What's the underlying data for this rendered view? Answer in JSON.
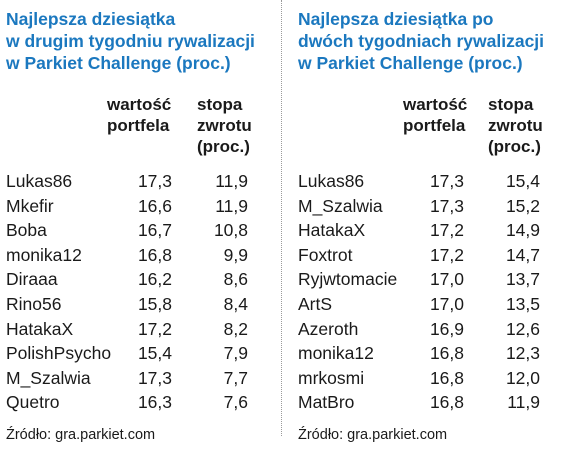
{
  "chart_data": [
    {
      "type": "table",
      "title_lines": [
        "Najlepsza dziesiątka",
        "w drugim tygodniu rywalizacji",
        "w Parkiet Challenge (proc.)"
      ],
      "columns": [
        "",
        "wartość portfela",
        "stopa zwrotu (proc.)"
      ],
      "header": {
        "value_lines": [
          "wartość",
          "portfela"
        ],
        "return_lines": [
          "stopa",
          "zwrotu",
          "(proc.)"
        ]
      },
      "rows": [
        {
          "name": "Lukas86",
          "value": "17,3",
          "ret": "11,9"
        },
        {
          "name": "Mkefir",
          "value": "16,6",
          "ret": "11,9"
        },
        {
          "name": "Boba",
          "value": "16,7",
          "ret": "10,8"
        },
        {
          "name": "monika12",
          "value": "16,8",
          "ret": "9,9"
        },
        {
          "name": "Diraaa",
          "value": "16,2",
          "ret": "8,6"
        },
        {
          "name": "Rino56",
          "value": "15,8",
          "ret": "8,4"
        },
        {
          "name": "HatakaX",
          "value": "17,2",
          "ret": "8,2"
        },
        {
          "name": "PolishPsycho",
          "value": "15,4",
          "ret": "7,9"
        },
        {
          "name": "M_Szalwia",
          "value": "17,3",
          "ret": "7,7"
        },
        {
          "name": "Quetro",
          "value": "16,3",
          "ret": "7,6"
        }
      ],
      "source": "Źródło: gra.parkiet.com"
    },
    {
      "type": "table",
      "title_lines": [
        "Najlepsza dziesiątka po",
        "dwóch tygodniach rywalizacji",
        "w Parkiet Challenge (proc.)"
      ],
      "columns": [
        "",
        "wartość portfela",
        "stopa zwrotu (proc.)"
      ],
      "header": {
        "value_lines": [
          "wartość",
          "portfela"
        ],
        "return_lines": [
          "stopa",
          "zwrotu",
          "(proc.)"
        ]
      },
      "rows": [
        {
          "name": "Lukas86",
          "value": "17,3",
          "ret": "15,4"
        },
        {
          "name": "M_Szalwia",
          "value": "17,3",
          "ret": "15,2"
        },
        {
          "name": "HatakaX",
          "value": "17,2",
          "ret": "14,9"
        },
        {
          "name": "Foxtrot",
          "value": "17,2",
          "ret": "14,7"
        },
        {
          "name": "Ryjwtomacie",
          "value": "17,0",
          "ret": "13,7"
        },
        {
          "name": "ArtS",
          "value": "17,0",
          "ret": "13,5"
        },
        {
          "name": "Azeroth",
          "value": "16,9",
          "ret": "12,6"
        },
        {
          "name": "monika12",
          "value": "16,8",
          "ret": "12,3"
        },
        {
          "name": "mrkosmi",
          "value": "16,8",
          "ret": "12,0"
        },
        {
          "name": "MatBro",
          "value": "16,8",
          "ret": "11,9"
        }
      ],
      "source": "Źródło: gra.parkiet.com"
    }
  ],
  "colors": {
    "title": "#1b78bf",
    "text": "#1a1a1a",
    "divider": "#9a9a9a"
  }
}
